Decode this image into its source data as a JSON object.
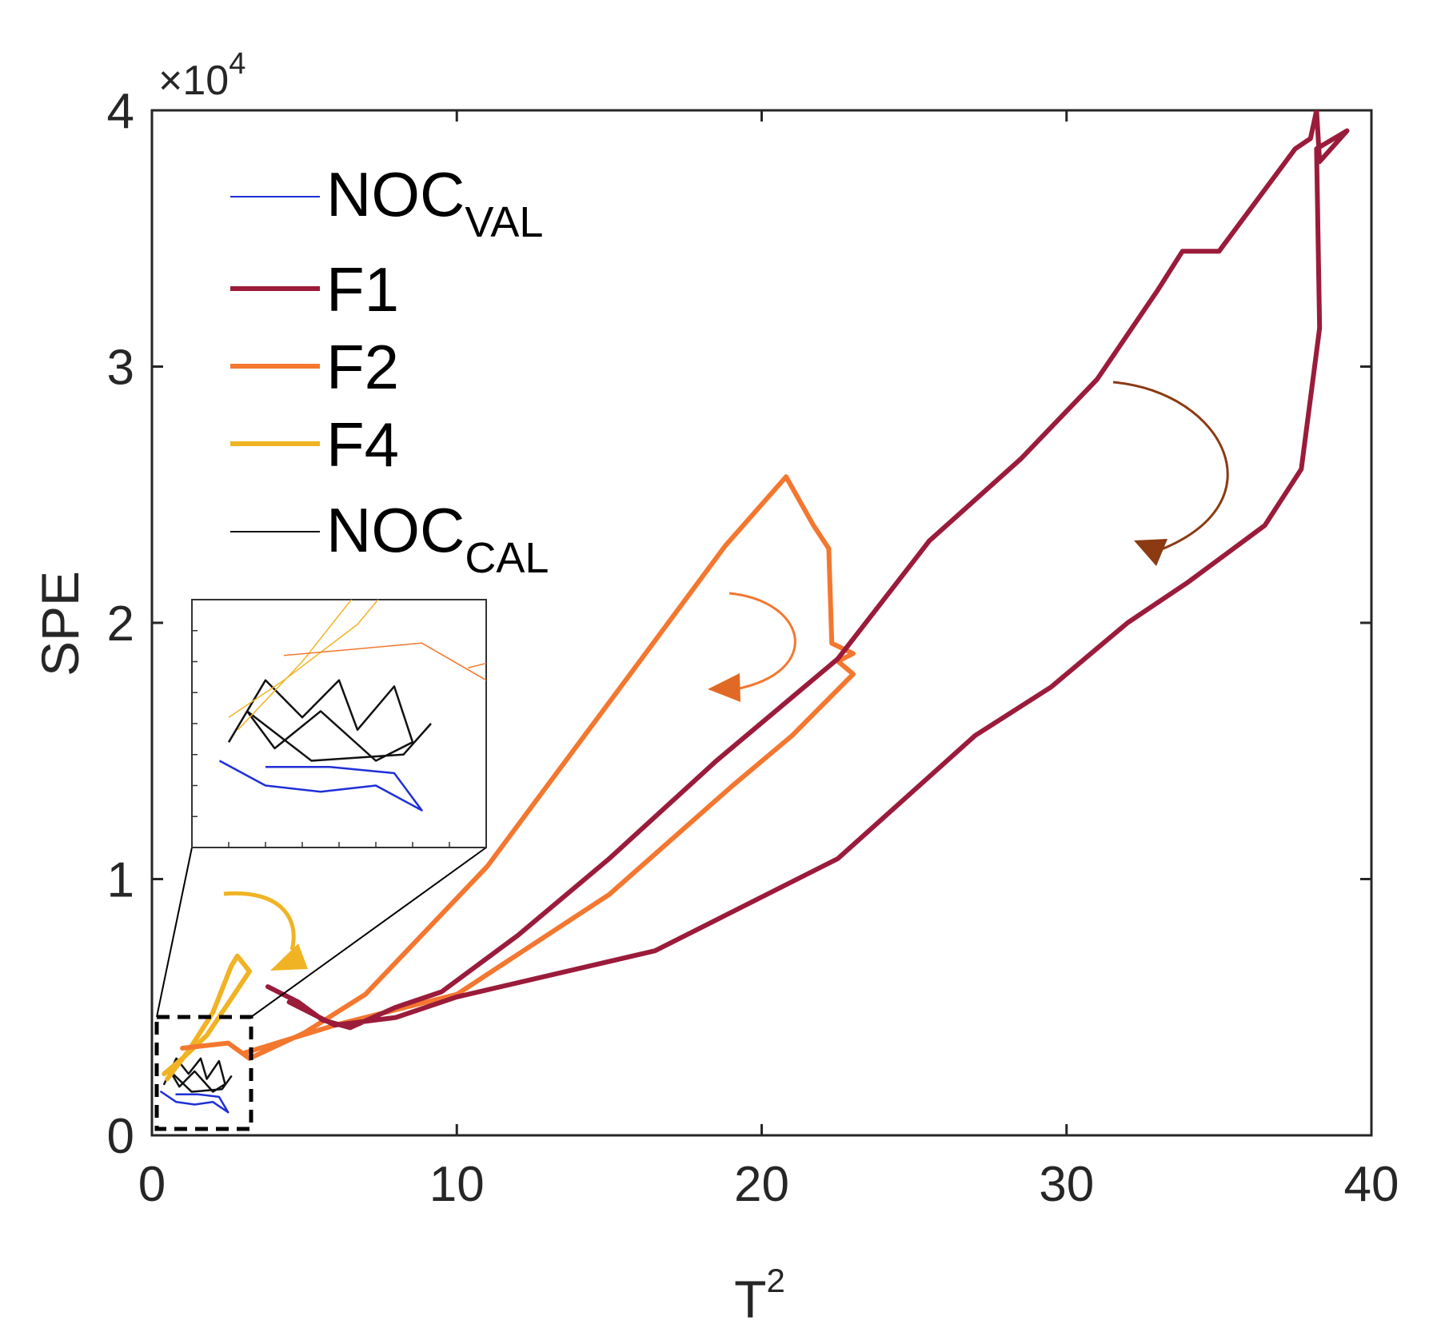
{
  "chart_data": {
    "type": "line",
    "title": "",
    "xlabel": "T",
    "xlabel_superscript": "2",
    "ylabel": "SPE",
    "xlim": [
      0,
      40
    ],
    "ylim": [
      0,
      40000
    ],
    "x_ticks": [
      "0",
      "10",
      "20",
      "30",
      "40"
    ],
    "y_ticks": [
      "0",
      "1",
      "2",
      "3",
      "4"
    ],
    "y_multiplier": {
      "prefix": "×10",
      "exponent": "4"
    },
    "legend": {
      "placement": "top-left",
      "entries": [
        {
          "name": "NOC",
          "subscript": "VAL",
          "color": "#1f2fd6"
        },
        {
          "name": "F1",
          "subscript": "",
          "color": "#9b1b3a"
        },
        {
          "name": "F2",
          "subscript": "",
          "color": "#f4772f"
        },
        {
          "name": "F4",
          "subscript": "",
          "color": "#f0b323"
        },
        {
          "name": "NOC",
          "subscript": "CAL",
          "color": "#111111"
        }
      ]
    },
    "series": [
      {
        "name": "F1",
        "color": "#9b1b3a",
        "points": [
          [
            3.8,
            5800
          ],
          [
            4.8,
            5200
          ],
          [
            5.6,
            4500
          ],
          [
            6.5,
            4200
          ],
          [
            8,
            5000
          ],
          [
            9.5,
            5600
          ],
          [
            12,
            7800
          ],
          [
            15,
            10800
          ],
          [
            18.5,
            14600
          ],
          [
            22.5,
            18600
          ],
          [
            25.5,
            23200
          ],
          [
            28.5,
            26400
          ],
          [
            31,
            29500
          ],
          [
            33,
            33000
          ],
          [
            33.8,
            34500
          ],
          [
            35,
            34500
          ],
          [
            37.5,
            38500
          ],
          [
            38,
            38900
          ],
          [
            38.2,
            40000
          ],
          [
            38.3,
            38000
          ],
          [
            39.2,
            39200
          ],
          [
            38.2,
            38500
          ],
          [
            38.3,
            31500
          ],
          [
            37.7,
            26000
          ],
          [
            36.5,
            23800
          ],
          [
            34,
            21600
          ],
          [
            32,
            20000
          ],
          [
            29.5,
            17500
          ],
          [
            27,
            15600
          ],
          [
            22.5,
            10800
          ],
          [
            16.5,
            7200
          ],
          [
            10,
            5400
          ],
          [
            8,
            4600
          ],
          [
            6,
            4300
          ],
          [
            4.5,
            5200
          ]
        ]
      },
      {
        "name": "F2",
        "color": "#f4772f",
        "points": [
          [
            1,
            3400
          ],
          [
            2.5,
            3600
          ],
          [
            3.2,
            3000
          ],
          [
            5,
            4000
          ],
          [
            7,
            5500
          ],
          [
            11,
            10500
          ],
          [
            16,
            18500
          ],
          [
            18.8,
            23000
          ],
          [
            20.8,
            25700
          ],
          [
            21.7,
            23800
          ],
          [
            22.2,
            22900
          ],
          [
            22.3,
            19200
          ],
          [
            23,
            18800
          ],
          [
            22.5,
            18500
          ],
          [
            23,
            18000
          ],
          [
            21,
            15600
          ],
          [
            19,
            13600
          ],
          [
            15,
            9400
          ],
          [
            10,
            5500
          ],
          [
            6,
            4300
          ],
          [
            3,
            3200
          ]
        ]
      },
      {
        "name": "F4",
        "color": "#f0b323",
        "points": [
          [
            0.5,
            2200
          ],
          [
            1.2,
            3300
          ],
          [
            2,
            4800
          ],
          [
            2.6,
            6600
          ],
          [
            2.8,
            7000
          ],
          [
            3.2,
            6400
          ],
          [
            1.8,
            3900
          ],
          [
            1,
            3000
          ],
          [
            0.4,
            2400
          ]
        ]
      },
      {
        "name": "NOC_CAL",
        "color": "#111111",
        "points": [
          [
            0.4,
            2000
          ],
          [
            0.8,
            3000
          ],
          [
            1.2,
            2400
          ],
          [
            1.6,
            3000
          ],
          [
            1.8,
            2200
          ],
          [
            2.2,
            2900
          ],
          [
            2.4,
            2000
          ],
          [
            2,
            1700
          ],
          [
            1.4,
            2500
          ],
          [
            0.9,
            1900
          ],
          [
            0.6,
            2500
          ],
          [
            1.3,
            1700
          ],
          [
            2.3,
            1800
          ],
          [
            2.6,
            2300
          ]
        ]
      },
      {
        "name": "NOC_VAL",
        "color": "#1f2fd6",
        "points": [
          [
            0.3,
            1700
          ],
          [
            0.8,
            1300
          ],
          [
            1.4,
            1200
          ],
          [
            2,
            1300
          ],
          [
            2.5,
            900
          ],
          [
            2.2,
            1500
          ],
          [
            1.5,
            1600
          ],
          [
            0.8,
            1600
          ]
        ]
      }
    ],
    "inset": {
      "description": "zoomed view of the dashed region near the origin",
      "x_range": [
        0,
        3.2
      ],
      "y_range": [
        300,
        4300
      ]
    },
    "annotations": [
      {
        "type": "arrow",
        "color": "#8b3a12",
        "meaning": "F1 trajectory direction"
      },
      {
        "type": "arrow",
        "color": "#f4772f",
        "meaning": "F2 trajectory direction"
      },
      {
        "type": "arrow",
        "color": "#f0b323",
        "meaning": "F4 trajectory direction"
      }
    ]
  }
}
